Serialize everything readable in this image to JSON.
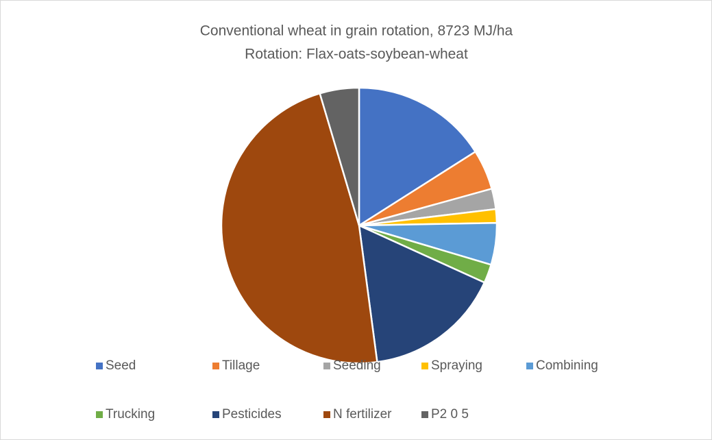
{
  "chart_data": {
    "type": "pie",
    "title": "Conventional wheat in grain rotation, 8723 MJ/ha",
    "subtitle": "Rotation: Flax-oats-soybean-wheat",
    "categories": [
      "Seed",
      "Tillage",
      "Seeding",
      "Spraying",
      "Combining",
      "Trucking",
      "Pesticides",
      "N fertilizer",
      "P2 0 5"
    ],
    "values": [
      16,
      4.7,
      2.4,
      1.6,
      4.9,
      2.2,
      16.1,
      47.5,
      4.6
    ],
    "colors": [
      "#4472c4",
      "#ed7d31",
      "#a5a5a5",
      "#ffc000",
      "#5b9bd5",
      "#70ad47",
      "#264478",
      "#9e480e",
      "#636363"
    ],
    "legend": "bottom"
  }
}
